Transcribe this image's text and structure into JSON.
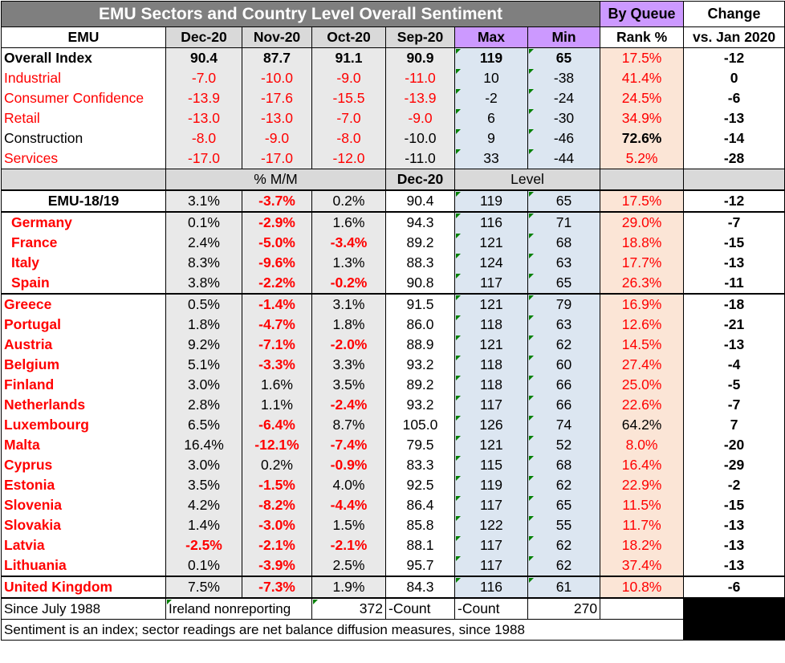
{
  "chart_data": {
    "type": "table",
    "title": "EMU Sectors and Country Level Overall Sentiment",
    "queue_header": "By Queue",
    "change_header": "Change",
    "columns": [
      "EMU",
      "Dec-20",
      "Nov-20",
      "Oct-20",
      "Sep-20",
      "Max",
      "Min",
      "Rank %",
      "vs. Jan 2020"
    ],
    "sector_rows": [
      {
        "label": "Overall Index",
        "v": [
          "90.4",
          "87.7",
          "91.1",
          "90.9",
          "119",
          "65",
          "17.5%",
          "-12"
        ]
      },
      {
        "label": "Industrial",
        "v": [
          "-7.0",
          "-10.0",
          "-9.0",
          "-11.0",
          "10",
          "-38",
          "41.4%",
          "0"
        ]
      },
      {
        "label": "Consumer Confidence",
        "v": [
          "-13.9",
          "-17.6",
          "-15.5",
          "-13.9",
          "-2",
          "-24",
          "24.5%",
          "-6"
        ]
      },
      {
        "label": "Retail",
        "v": [
          "-13.0",
          "-13.0",
          "-7.0",
          "-9.0",
          "6",
          "-30",
          "34.9%",
          "-13"
        ]
      },
      {
        "label": "Construction",
        "v": [
          "-8.0",
          "-9.0",
          "-8.0",
          "-10.0",
          "9",
          "-46",
          "72.6%",
          "-14"
        ]
      },
      {
        "label": "Services",
        "v": [
          "-17.0",
          "-17.0",
          "-12.0",
          "-11.0",
          "33",
          "-44",
          "5.2%",
          "-28"
        ]
      }
    ],
    "sub_header": {
      "mm": "% M/M",
      "level_date": "Dec-20",
      "level": "Level"
    },
    "country_rows": [
      {
        "label": "EMU-18/19",
        "v": [
          "3.1%",
          "-3.7%",
          "0.2%",
          "90.4",
          "119",
          "65",
          "17.5%",
          "-12"
        ]
      },
      {
        "label": "Germany",
        "v": [
          "0.1%",
          "-2.9%",
          "1.6%",
          "94.3",
          "116",
          "71",
          "29.0%",
          "-7"
        ]
      },
      {
        "label": "France",
        "v": [
          "2.4%",
          "-5.0%",
          "-3.4%",
          "89.2",
          "121",
          "68",
          "18.8%",
          "-15"
        ]
      },
      {
        "label": "Italy",
        "v": [
          "8.3%",
          "-9.6%",
          "1.3%",
          "88.3",
          "124",
          "63",
          "17.7%",
          "-13"
        ]
      },
      {
        "label": "Spain",
        "v": [
          "3.8%",
          "-2.2%",
          "-0.2%",
          "90.8",
          "117",
          "65",
          "26.3%",
          "-11"
        ]
      },
      {
        "label": "Greece",
        "v": [
          "0.5%",
          "-1.4%",
          "3.1%",
          "91.5",
          "121",
          "79",
          "16.9%",
          "-18"
        ]
      },
      {
        "label": "Portugal",
        "v": [
          "1.8%",
          "-4.7%",
          "1.8%",
          "86.0",
          "118",
          "63",
          "12.6%",
          "-21"
        ]
      },
      {
        "label": "Austria",
        "v": [
          "9.2%",
          "-7.1%",
          "-2.0%",
          "88.9",
          "121",
          "62",
          "14.5%",
          "-13"
        ]
      },
      {
        "label": "Belgium",
        "v": [
          "5.1%",
          "-3.3%",
          "3.3%",
          "93.2",
          "118",
          "60",
          "27.4%",
          "-4"
        ]
      },
      {
        "label": "Finland",
        "v": [
          "3.0%",
          "1.6%",
          "3.5%",
          "89.2",
          "118",
          "66",
          "25.0%",
          "-5"
        ]
      },
      {
        "label": "Netherlands",
        "v": [
          "2.8%",
          "1.1%",
          "-2.4%",
          "93.2",
          "117",
          "66",
          "22.6%",
          "-7"
        ]
      },
      {
        "label": "Luxembourg",
        "v": [
          "6.5%",
          "-6.4%",
          "8.7%",
          "105.0",
          "126",
          "74",
          "64.2%",
          "7"
        ]
      },
      {
        "label": "Malta",
        "v": [
          "16.4%",
          "-12.1%",
          "-7.4%",
          "79.5",
          "121",
          "52",
          "8.0%",
          "-20"
        ]
      },
      {
        "label": "Cyprus",
        "v": [
          "3.0%",
          "0.2%",
          "-0.9%",
          "83.3",
          "115",
          "68",
          "16.4%",
          "-29"
        ]
      },
      {
        "label": "Estonia",
        "v": [
          "3.5%",
          "-1.5%",
          "4.0%",
          "92.5",
          "119",
          "62",
          "22.9%",
          "-2"
        ]
      },
      {
        "label": "Slovenia",
        "v": [
          "4.2%",
          "-8.2%",
          "-4.4%",
          "86.4",
          "117",
          "65",
          "11.5%",
          "-15"
        ]
      },
      {
        "label": "Slovakia",
        "v": [
          "1.4%",
          "-3.0%",
          "1.5%",
          "85.8",
          "122",
          "55",
          "11.7%",
          "-13"
        ]
      },
      {
        "label": "Latvia",
        "v": [
          "-2.5%",
          "-2.1%",
          "-2.1%",
          "88.1",
          "117",
          "62",
          "18.2%",
          "-13"
        ]
      },
      {
        "label": "Lithuania",
        "v": [
          "0.1%",
          "-3.9%",
          "2.5%",
          "95.7",
          "117",
          "62",
          "37.4%",
          "-13"
        ]
      },
      {
        "label": "United Kingdom",
        "v": [
          "7.5%",
          "-7.3%",
          "1.9%",
          "84.3",
          "116",
          "61",
          "10.8%",
          "-6"
        ]
      }
    ],
    "footer": {
      "since": "Since July  1988",
      "ireland": "Ireland nonreporting",
      "count1": "372",
      "count1_label": "-Count",
      "count2_label": "-Count",
      "count2": "270",
      "note": "Sentiment is an index; sector readings are net balance diffusion measures, since 1988"
    }
  }
}
